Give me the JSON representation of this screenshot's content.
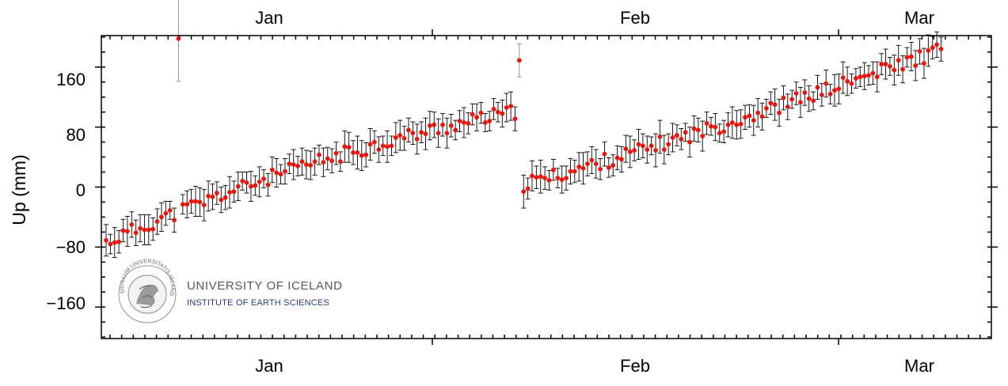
{
  "chart_data": {
    "type": "scatter",
    "ylabel": "Up (mm)",
    "ylim": [
      -202,
      202
    ],
    "yticks": [
      -160,
      -80,
      0,
      80,
      160
    ],
    "x_tick_labels_top": [
      "Jan",
      "Feb",
      "Mar"
    ],
    "x_tick_labels_bottom": [
      "Jan",
      "Feb",
      "Mar"
    ],
    "marker_color": "#e8160c",
    "errorbar_color": "#000000",
    "outlier_color": "#8a8a8a",
    "grid": false,
    "outliers": [
      {
        "x": 17,
        "y": 198,
        "err": 57
      },
      {
        "x": 97,
        "y": 169,
        "err": 22
      }
    ],
    "segments": [
      {
        "x_start": 0,
        "x_end": 96,
        "y_start": -74,
        "y_end": 100,
        "curve": 0.2
      },
      {
        "x_start": 98,
        "x_end": 196,
        "y_start": 3,
        "y_end": 183,
        "curve": -0.06
      }
    ],
    "points": []
  },
  "logo": {
    "name": "UNIVERSITY OF ICELAND",
    "subtitle": "INSTITUTE OF EARTH SCIENCES",
    "seal_text": "SIGILLUM UNIVERSITATIS ISLANDIAE"
  }
}
